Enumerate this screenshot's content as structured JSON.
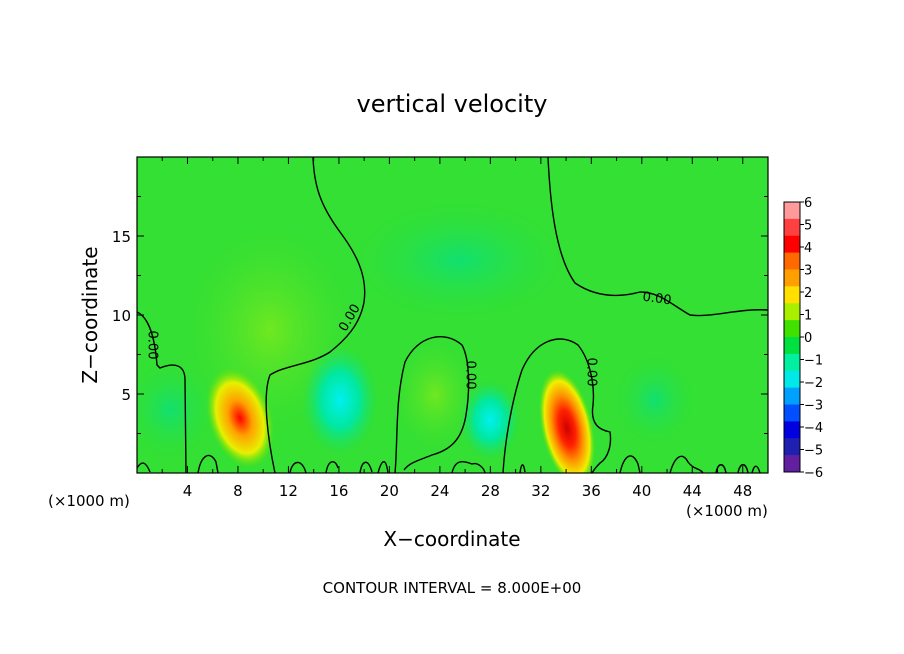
{
  "chart_data": {
    "type": "heatmap",
    "title": "vertical velocity",
    "xlabel": "X−coordinate",
    "ylabel": "Z−coordinate",
    "x_unit_left": "(×1000 m)",
    "x_unit_right": "(×1000 m)",
    "footer": "CONTOUR INTERVAL = 8.000E+00",
    "xlim": [
      0,
      50
    ],
    "ylim": [
      0,
      20
    ],
    "x_ticks": [
      {
        "value": 4,
        "label": "4"
      },
      {
        "value": 8,
        "label": "8"
      },
      {
        "value": 12,
        "label": "12"
      },
      {
        "value": 16,
        "label": "16"
      },
      {
        "value": 20,
        "label": "20"
      },
      {
        "value": 24,
        "label": "24"
      },
      {
        "value": 28,
        "label": "28"
      },
      {
        "value": 32,
        "label": "32"
      },
      {
        "value": 36,
        "label": "36"
      },
      {
        "value": 40,
        "label": "40"
      },
      {
        "value": 44,
        "label": "44"
      },
      {
        "value": 48,
        "label": "48"
      }
    ],
    "y_ticks": [
      {
        "value": 5,
        "label": "5"
      },
      {
        "value": 10,
        "label": "10"
      },
      {
        "value": 15,
        "label": "15"
      }
    ],
    "colorbar": {
      "labels": [
        "6",
        "5",
        "4",
        "3",
        "2",
        "1",
        "0",
        "−1",
        "−2",
        "−3",
        "−4",
        "−5",
        "−6"
      ],
      "colors": [
        "#ff9a9a",
        "#ff4040",
        "#ff0000",
        "#ff6a00",
        "#ffa000",
        "#ffe000",
        "#a8f000",
        "#40e000",
        "#00e040",
        "#00f0a0",
        "#00e8e8",
        "#00a0ff",
        "#0050ff",
        "#0000e0",
        "#2020b0",
        "#6020a0"
      ]
    },
    "background_color": "#33e033",
    "contour_labels": [
      "0.00",
      "0.00",
      "0.00",
      "0.00",
      "0.00"
    ],
    "features": [
      {
        "type": "updraft",
        "x": 8.5,
        "z": 3.5,
        "value": 3
      },
      {
        "type": "updraft",
        "x": 33.5,
        "z": 2.8,
        "value": 4.5
      },
      {
        "type": "downdraft",
        "x": 16,
        "z": 4,
        "value": -2
      },
      {
        "type": "downdraft",
        "x": 28,
        "z": 3,
        "value": -1.5
      }
    ]
  }
}
